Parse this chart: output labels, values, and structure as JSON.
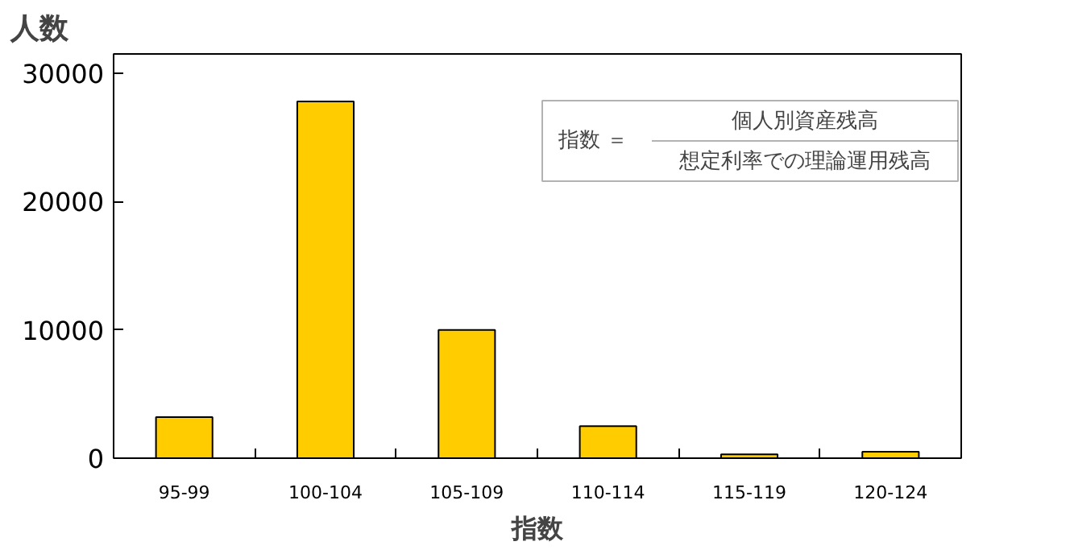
{
  "chart_data": {
    "type": "bar",
    "ylabel": "人数",
    "xlabel": "指数",
    "categories": [
      "95-99",
      "100-104",
      "105-109",
      "110-114",
      "115-119",
      "120-124"
    ],
    "values": [
      3200,
      27800,
      10000,
      2500,
      300,
      500
    ],
    "color": "#ffcc00",
    "ylim": [
      0,
      31500
    ],
    "yticks": [
      0,
      10000,
      20000,
      30000
    ],
    "grid": false,
    "annotations": [
      "指数 ＝",
      "個人別資産残高",
      "想定利率での理論運用残高"
    ]
  }
}
